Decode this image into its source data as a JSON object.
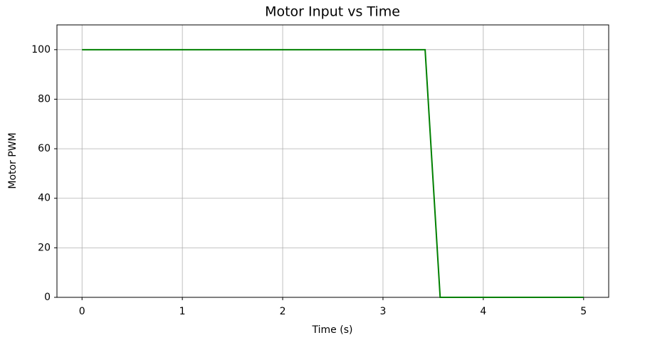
{
  "chart_data": {
    "type": "line",
    "title": "Motor Input vs Time",
    "xlabel": "Time (s)",
    "ylabel": "Motor PWM",
    "x": [
      0,
      3.42,
      3.57,
      5
    ],
    "series": [
      {
        "name": "Motor PWM",
        "color": "#008000",
        "values": [
          100,
          100,
          0,
          0
        ]
      }
    ],
    "xlim": [
      -0.25,
      5.25
    ],
    "xticks": [
      0,
      1,
      2,
      3,
      4,
      5
    ],
    "ylim": [
      0,
      110
    ],
    "yticks": [
      0,
      20,
      40,
      60,
      80,
      100
    ],
    "grid": true
  }
}
